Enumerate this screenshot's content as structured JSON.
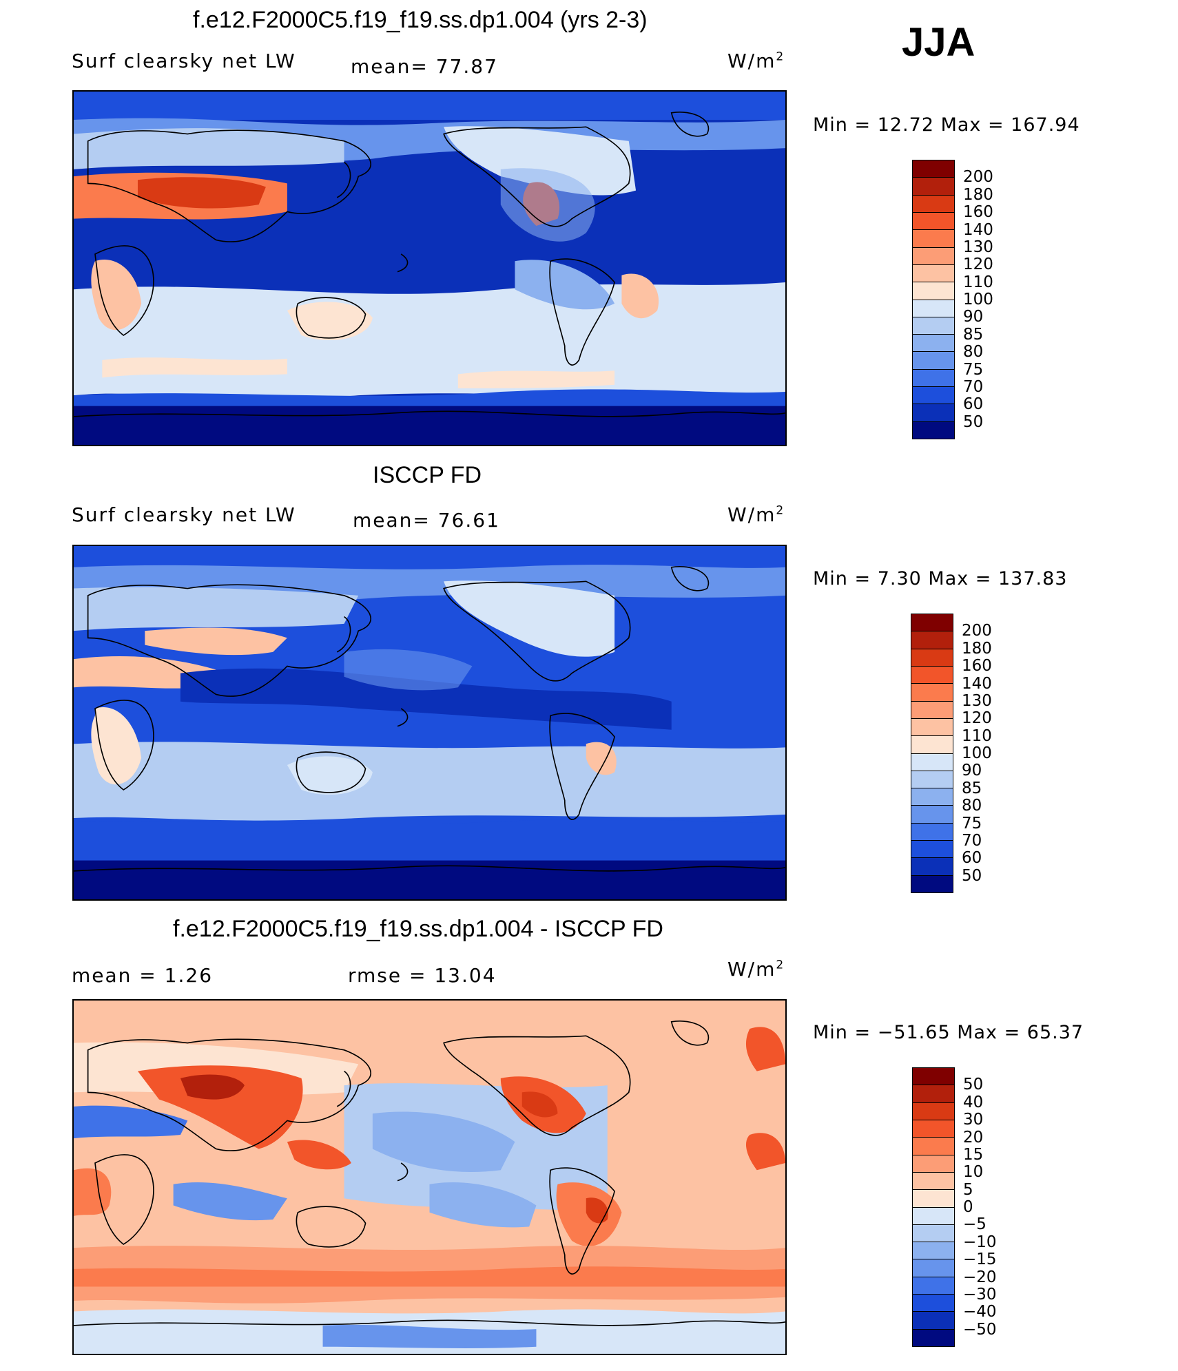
{
  "season": "JJA",
  "panels": [
    {
      "title": "f.e12.F2000C5.f19_f19.ss.dp1.004 (yrs 2-3)",
      "left_label": "Surf clearsky net LW",
      "middle_label": "mean=  77.87",
      "units": "W/m",
      "units_sup": "2",
      "minmax": "Min =   12.72 Max = 167.94",
      "colorbar": {
        "levels": [
          "200",
          "180",
          "160",
          "140",
          "130",
          "120",
          "110",
          "100",
          "90",
          "85",
          "80",
          "75",
          "70",
          "60",
          "50"
        ],
        "colors": [
          "#7f0000",
          "#b2200c",
          "#d93a14",
          "#f2552a",
          "#fb7b4d",
          "#fc9d76",
          "#fdc2a3",
          "#fde4d2",
          "#d7e6f8",
          "#b4cdf2",
          "#8cb1ef",
          "#6794ec",
          "#3f72e8",
          "#1d4fdc",
          "#0b30b8",
          "#000a80"
        ]
      }
    },
    {
      "title": "ISCCP FD",
      "left_label": "Surf clearsky net LW",
      "middle_label": "mean=  76.61",
      "units": "W/m",
      "units_sup": "2",
      "minmax": "Min =    7.30 Max = 137.83",
      "colorbar": {
        "levels": [
          "200",
          "180",
          "160",
          "140",
          "130",
          "120",
          "110",
          "100",
          "90",
          "85",
          "80",
          "75",
          "70",
          "60",
          "50"
        ],
        "colors": [
          "#7f0000",
          "#b2200c",
          "#d93a14",
          "#f2552a",
          "#fb7b4d",
          "#fc9d76",
          "#fdc2a3",
          "#fde4d2",
          "#d7e6f8",
          "#b4cdf2",
          "#8cb1ef",
          "#6794ec",
          "#3f72e8",
          "#1d4fdc",
          "#0b30b8",
          "#000a80"
        ]
      }
    },
    {
      "title": "f.e12.F2000C5.f19_f19.ss.dp1.004 - ISCCP FD",
      "left_label": "mean =    1.26",
      "middle_label": "rmse =   13.04",
      "units": "W/m",
      "units_sup": "2",
      "minmax": "Min = −51.65 Max =   65.37",
      "colorbar": {
        "levels": [
          "50",
          "40",
          "30",
          "20",
          "15",
          "10",
          "5",
          "0",
          "−5",
          "−10",
          "−15",
          "−20",
          "−30",
          "−40",
          "−50"
        ],
        "colors": [
          "#7f0000",
          "#b2200c",
          "#d93a14",
          "#f2552a",
          "#fb7b4d",
          "#fc9d76",
          "#fdc2a3",
          "#fde4d2",
          "#d7e6f8",
          "#b4cdf2",
          "#8cb1ef",
          "#6794ec",
          "#3f72e8",
          "#1d4fdc",
          "#0b30b8",
          "#000a80"
        ]
      }
    }
  ]
}
